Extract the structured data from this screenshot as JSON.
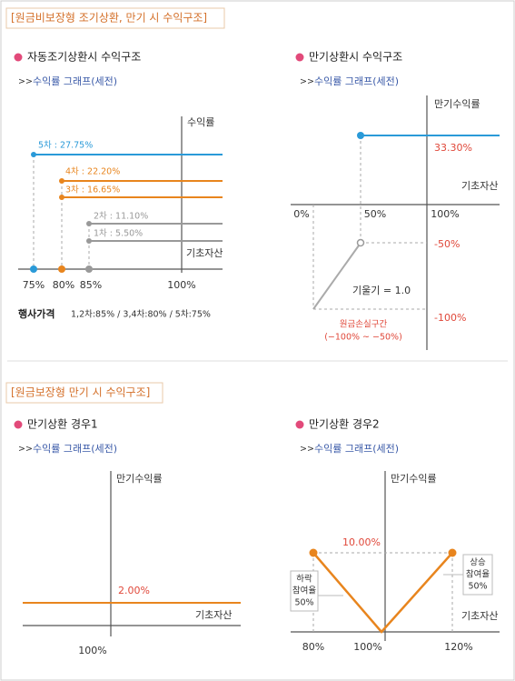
{
  "section1": {
    "title": "[원금비보장형 조기상환, 만기 시 수익구조]",
    "panel1": {
      "heading": "자동조기상환시 수익구조",
      "sub_marker": ">>",
      "sub": "수익률 그래프(세전)",
      "y_label": "수익률",
      "lines": [
        "5차 : 27.75%",
        "4차 : 22.20%",
        "3차 : 16.65%",
        "2차 : 11.10%",
        "1차 : 5.50%"
      ],
      "x_label": "기초자산",
      "x_ticks": [
        "75%",
        "80%",
        "85%",
        "100%"
      ],
      "note_label": "행사가격",
      "note": "1,2차:85% / 3,4차:80% / 5차:75%"
    },
    "panel2": {
      "heading": "만기상환시 수익구조",
      "sub_marker": ">>",
      "sub": "수익률 그래프(세전)",
      "y_label": "만기수익률",
      "max_label": "33.30%",
      "x_label": "기초자산",
      "x_ticks": [
        "0%",
        "50%",
        "100%"
      ],
      "minus50": "-50%",
      "slope": "기울기 = 1.0",
      "minus100": "-100%",
      "loss_zone": "원금손실구간",
      "loss_range": "(−100% ~ −50%)"
    }
  },
  "section2": {
    "title": "[원금보장형 만기 시 수익구조]",
    "panel3": {
      "heading": "만기상환 경우1",
      "sub_marker": ">>",
      "sub": "수익률 그래프(세전)",
      "y_label": "만기수익률",
      "value_label": "2.00%",
      "x_label": "기초자산",
      "x_tick": "100%"
    },
    "panel4": {
      "heading": "만기상환 경우2",
      "sub_marker": ">>",
      "sub": "수익률 그래프(세전)",
      "y_label": "만기수익률",
      "value_label": "10.00%",
      "down_box": [
        "하락",
        "참여율",
        "50%"
      ],
      "up_box": [
        "상승",
        "참여율",
        "50%"
      ],
      "x_label": "기초자산",
      "x_ticks": [
        "80%",
        "100%",
        "120%"
      ]
    }
  }
}
